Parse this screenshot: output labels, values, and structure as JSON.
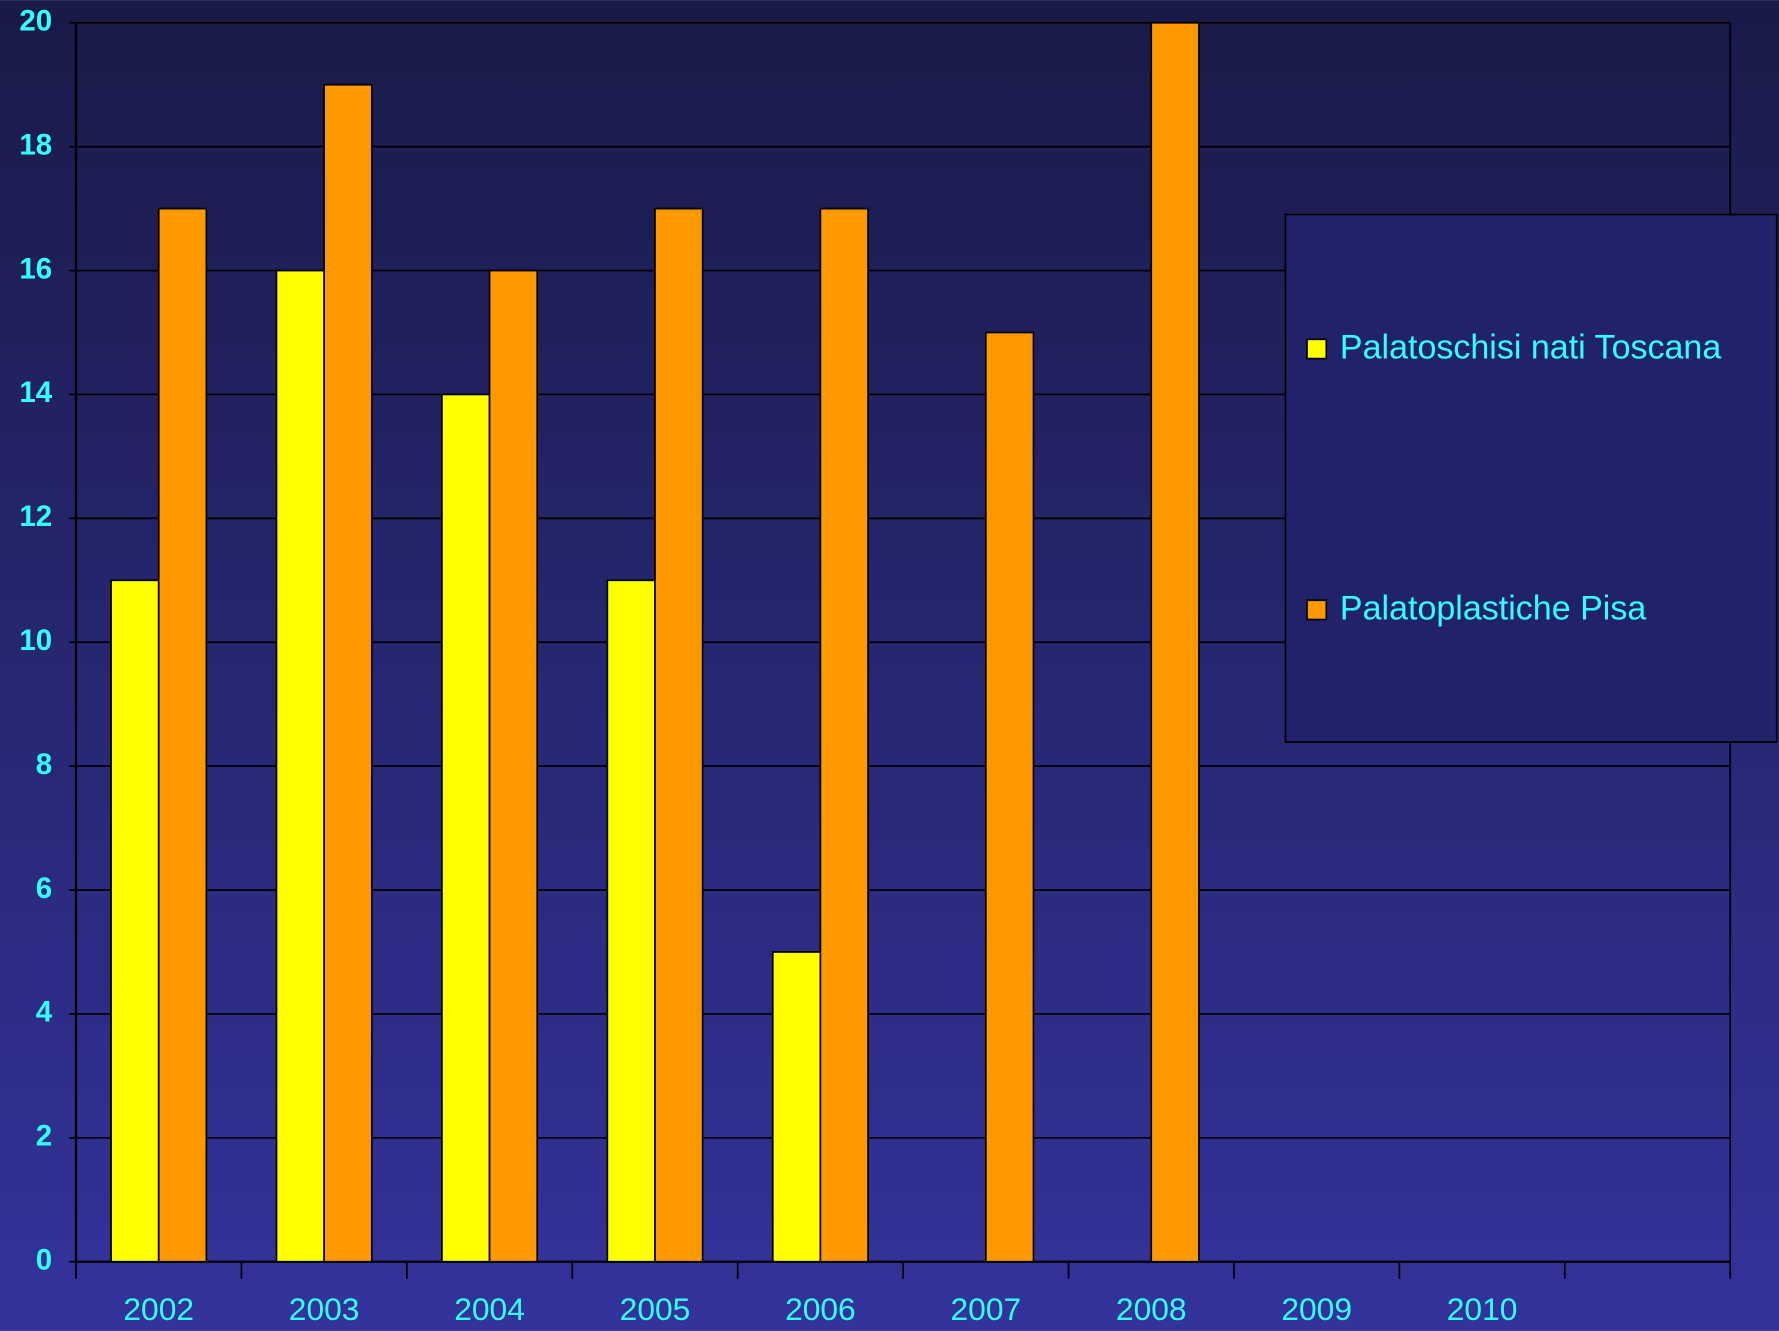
{
  "chart_data": {
    "type": "bar",
    "categories": [
      "2002",
      "2003",
      "2004",
      "2005",
      "2006",
      "2007",
      "2008",
      "2009",
      "2010",
      null
    ],
    "series": [
      {
        "name": "Palatoschisi nati Toscana",
        "color": "#ffff00",
        "values": [
          11,
          16,
          14,
          11,
          5,
          null,
          null,
          null,
          null,
          null
        ]
      },
      {
        "name": "Palatoplastiche Pisa",
        "color": "#ff9900",
        "values": [
          17,
          19,
          16,
          17,
          17,
          15,
          20,
          null,
          null,
          null
        ]
      }
    ],
    "ylim": [
      0,
      20
    ],
    "yticks": [
      0,
      2,
      4,
      6,
      8,
      10,
      12,
      14,
      16,
      18,
      20
    ],
    "grid": true,
    "legend": "right"
  }
}
